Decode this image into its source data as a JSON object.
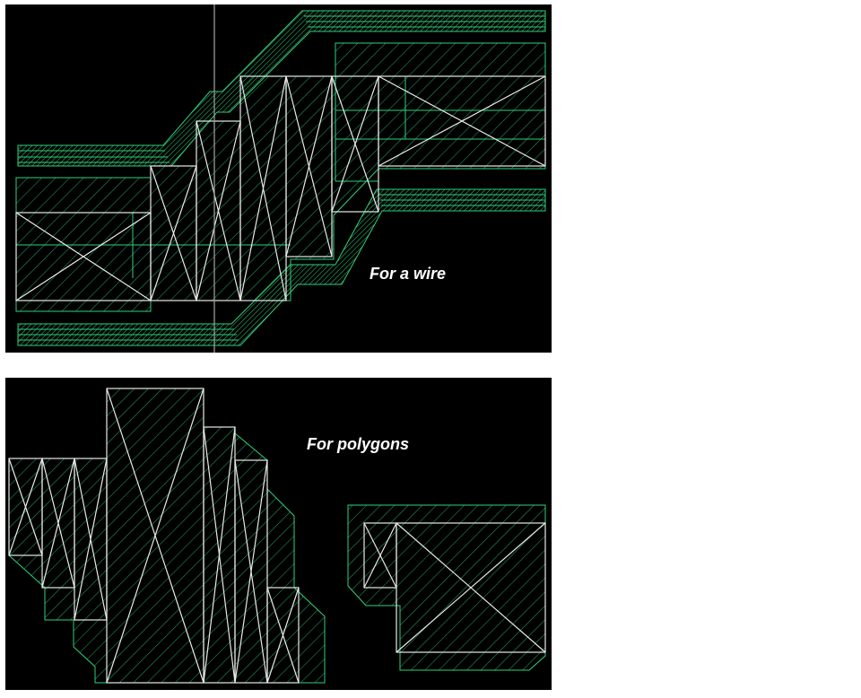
{
  "wire_panel": {
    "label": "For a wire"
  },
  "polygon_panel": {
    "label": "For polygons"
  },
  "colors": {
    "background": "#000000",
    "hatch": "#1f9e55",
    "outline_green": "#2fd07a",
    "outline_white": "#e8e8e8",
    "label": "#ffffff",
    "cursor_line": "#9a9a9a"
  }
}
